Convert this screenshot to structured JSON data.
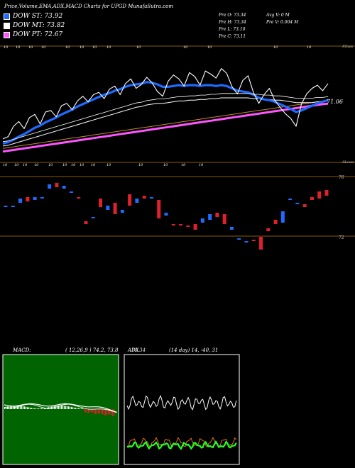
{
  "header": {
    "title": "Price,Volume,EMA,ADX,MACD Charts for UPGD MunafaSutra.com"
  },
  "legend": [
    {
      "label": "DOW ST: 73.92",
      "color": "#1e6bff"
    },
    {
      "label": "DOW MT: 73.82",
      "color": "#ffffff"
    },
    {
      "label": "DOW PT: 72.67",
      "color": "#ff55ff"
    }
  ],
  "stats": {
    "open": "Pre   O: 73.34",
    "high": "Pre   H: 73.34",
    "low": "Pre   L: 73.10",
    "close": "Pre   C: 73.11",
    "avg_vol": "Avg V: 0  M",
    "pre_vol": "Pre   V: 0.004  M"
  },
  "price_panel": {
    "top_note": "ÂTops",
    "bottom_note": "ÂLows",
    "price_tag": "71.06",
    "top_marks": [
      "10",
      "10",
      "10",
      "10",
      "10",
      "10",
      "10",
      "10",
      "10",
      "10",
      "10",
      "10",
      "10"
    ],
    "bottom_marks": [
      "10",
      "10",
      "10",
      "10",
      "10",
      "10",
      "10",
      "10",
      "10",
      "10",
      "10",
      "10",
      "10",
      "10"
    ]
  },
  "candle_panel": {
    "level_top": "76",
    "level_bottom": "72"
  },
  "macd_panel": {
    "label": "MACD:",
    "params": "( 12,26,9 ) 74.2,  73.8"
  },
  "adx_panel": {
    "label": "ADX",
    "overlay": "70.34",
    "params": "(14  day) 14,  -40,  31"
  },
  "chart_data": {
    "type": "line",
    "series": [
      {
        "values": [
          68.2,
          68.5,
          69.8,
          70.4,
          69.5,
          70.9,
          71.3,
          70.1,
          71.6,
          71.8,
          71.0,
          72.4,
          72.7,
          71.9,
          73.0,
          73.6,
          72.9,
          73.8,
          74.1,
          73.3,
          74.5,
          74.9,
          73.8,
          75.2,
          75.8,
          74.6,
          75.1,
          76.0,
          75.3,
          74.2,
          73.6,
          75.5,
          76.3,
          75.8,
          74.9,
          76.6,
          76.1,
          75.0,
          76.8,
          76.4,
          75.9,
          77.1,
          76.5,
          74.8,
          73.9,
          75.6,
          76.2,
          74.1,
          72.7,
          73.8,
          74.6,
          73.1,
          72.2,
          71.4,
          70.8,
          69.8,
          72.6,
          73.9,
          74.6,
          75.0,
          74.3,
          75.2
        ]
      },
      {
        "values": [
          67.6,
          67.8,
          68.1,
          68.5,
          68.8,
          69.2,
          69.6,
          69.9,
          70.3,
          70.6,
          70.9,
          71.3,
          71.6,
          71.9,
          72.3,
          72.6,
          72.9,
          73.2,
          73.5,
          73.8,
          74.0,
          74.3,
          74.5,
          74.8,
          75.0,
          75.1,
          75.2,
          75.4,
          75.3,
          75.1,
          74.8,
          74.8,
          74.9,
          75.0,
          74.9,
          75.0,
          75.0,
          74.9,
          75.0,
          75.0,
          74.9,
          75.0,
          74.9,
          74.6,
          74.3,
          74.2,
          74.1,
          73.8,
          73.4,
          73.2,
          73.1,
          72.9,
          72.6,
          72.3,
          72.0,
          71.6,
          71.8,
          72.1,
          72.4,
          72.7,
          72.9,
          73.1
        ]
      },
      {
        "values": [
          67.3,
          67.4,
          67.6,
          67.8,
          68.0,
          68.2,
          68.4,
          68.6,
          68.8,
          69.0,
          69.2,
          69.4,
          69.6,
          69.8,
          70.0,
          70.2,
          70.4,
          70.6,
          70.8,
          71.0,
          71.2,
          71.4,
          71.6,
          71.8,
          72.0,
          72.2,
          72.3,
          72.5,
          72.6,
          72.7,
          72.7,
          72.8,
          72.9,
          73.0,
          73.0,
          73.1,
          73.1,
          73.2,
          73.2,
          73.3,
          73.3,
          73.4,
          73.4,
          73.4,
          73.4,
          73.4,
          73.4,
          73.3,
          73.3,
          73.2,
          73.2,
          73.1,
          73.1,
          73.0,
          72.9,
          72.8,
          72.8,
          72.8,
          72.8,
          72.9,
          72.9,
          73.0
        ]
      },
      {
        "values": [
          67.0,
          67.1,
          67.2,
          67.3,
          67.4,
          67.5,
          67.6,
          67.7,
          67.8,
          67.9,
          68.0,
          68.1,
          68.2,
          68.3,
          68.4,
          68.5,
          68.6,
          68.7,
          68.8,
          68.9,
          69.0,
          69.1,
          69.2,
          69.3,
          69.4,
          69.5,
          69.6,
          69.7,
          69.8,
          69.9,
          70.0,
          70.1,
          70.2,
          70.3,
          70.4,
          70.5,
          70.6,
          70.7,
          70.8,
          70.9,
          71.0,
          71.1,
          71.2,
          71.3,
          71.4,
          71.5,
          71.6,
          71.7,
          71.8,
          71.9,
          72.0,
          72.1,
          72.2,
          72.3,
          72.4,
          72.5,
          72.6,
          72.7,
          72.8,
          72.9,
          73.0,
          73.1
        ]
      },
      {
        "values": [
          66.6,
          66.7,
          66.8,
          66.9,
          67.0,
          67.1,
          67.2,
          67.3,
          67.4,
          67.5,
          67.6,
          67.7,
          67.8,
          67.9,
          68.0,
          68.1,
          68.2,
          68.3,
          68.4,
          68.5,
          68.6,
          68.7,
          68.8,
          68.9,
          69.0,
          69.1,
          69.2,
          69.3,
          69.4,
          69.5,
          69.6,
          69.7,
          69.8,
          69.9,
          70.0,
          70.1,
          70.2,
          70.3,
          70.4,
          70.5,
          70.6,
          70.7,
          70.8,
          70.9,
          71.0,
          71.1,
          71.2,
          71.3,
          71.4,
          71.5,
          71.6,
          71.7,
          71.8,
          71.9,
          72.0,
          72.1,
          72.2,
          72.3,
          72.4,
          72.5,
          72.6,
          72.67
        ]
      }
    ],
    "candles": [
      {
        "o": 74.4,
        "c": 74.3,
        "up": true
      },
      {
        "o": 74.4,
        "c": 74.4,
        "up": true
      },
      {
        "o": 74.9,
        "c": 74.6,
        "up": true
      },
      {
        "o": 75.0,
        "c": 74.7,
        "up": false
      },
      {
        "o": 75.0,
        "c": 74.8,
        "up": true
      },
      {
        "o": 75.0,
        "c": 74.9,
        "up": true
      },
      {
        "o": 75.9,
        "c": 75.6,
        "up": true
      },
      {
        "o": 76.0,
        "c": 75.7,
        "up": false
      },
      {
        "o": 75.8,
        "c": 75.6,
        "up": true
      },
      {
        "o": 75.4,
        "c": 75.4,
        "up": true
      },
      {
        "o": 75.0,
        "c": 74.9,
        "up": false
      },
      {
        "o": 73.3,
        "c": 73.1,
        "up": false
      },
      {
        "o": 73.6,
        "c": 73.6,
        "up": true
      },
      {
        "o": 74.9,
        "c": 74.3,
        "up": false
      },
      {
        "o": 74.4,
        "c": 74.1,
        "up": true
      },
      {
        "o": 74.6,
        "c": 73.8,
        "up": false
      },
      {
        "o": 74.1,
        "c": 73.9,
        "up": true
      },
      {
        "o": 75.2,
        "c": 74.4,
        "up": false
      },
      {
        "o": 74.9,
        "c": 74.6,
        "up": true
      },
      {
        "o": 75.1,
        "c": 74.9,
        "up": false
      },
      {
        "o": 75.0,
        "c": 74.9,
        "up": true
      },
      {
        "o": 74.8,
        "c": 73.5,
        "up": false
      },
      {
        "o": 73.9,
        "c": 73.7,
        "up": true
      },
      {
        "o": 73.1,
        "c": 73.0,
        "up": false
      },
      {
        "o": 73.1,
        "c": 73.0,
        "up": false
      },
      {
        "o": 73.0,
        "c": 73.0,
        "up": false
      },
      {
        "o": 73.1,
        "c": 72.7,
        "up": false
      },
      {
        "o": 73.5,
        "c": 73.2,
        "up": true
      },
      {
        "o": 73.8,
        "c": 73.4,
        "up": true
      },
      {
        "o": 73.9,
        "c": 73.6,
        "up": false
      },
      {
        "o": 73.8,
        "c": 73.1,
        "up": false
      },
      {
        "o": 72.9,
        "c": 72.7,
        "up": true
      },
      {
        "o": 72.1,
        "c": 72.0,
        "up": true
      },
      {
        "o": 71.9,
        "c": 71.9,
        "up": true
      },
      {
        "o": 72.0,
        "c": 71.9,
        "up": false
      },
      {
        "o": 72.2,
        "c": 71.3,
        "up": false
      },
      {
        "o": 72.8,
        "c": 72.6,
        "up": false
      },
      {
        "o": 73.4,
        "c": 73.1,
        "up": false
      },
      {
        "o": 74.0,
        "c": 73.2,
        "up": true
      },
      {
        "o": 74.9,
        "c": 74.8,
        "up": true
      },
      {
        "o": 74.6,
        "c": 74.5,
        "up": true
      },
      {
        "o": 74.5,
        "c": 74.3,
        "up": false
      },
      {
        "o": 75.0,
        "c": 74.8,
        "up": false
      },
      {
        "o": 75.4,
        "c": 74.9,
        "up": false
      },
      {
        "o": 75.5,
        "c": 75.1,
        "up": false
      }
    ]
  }
}
